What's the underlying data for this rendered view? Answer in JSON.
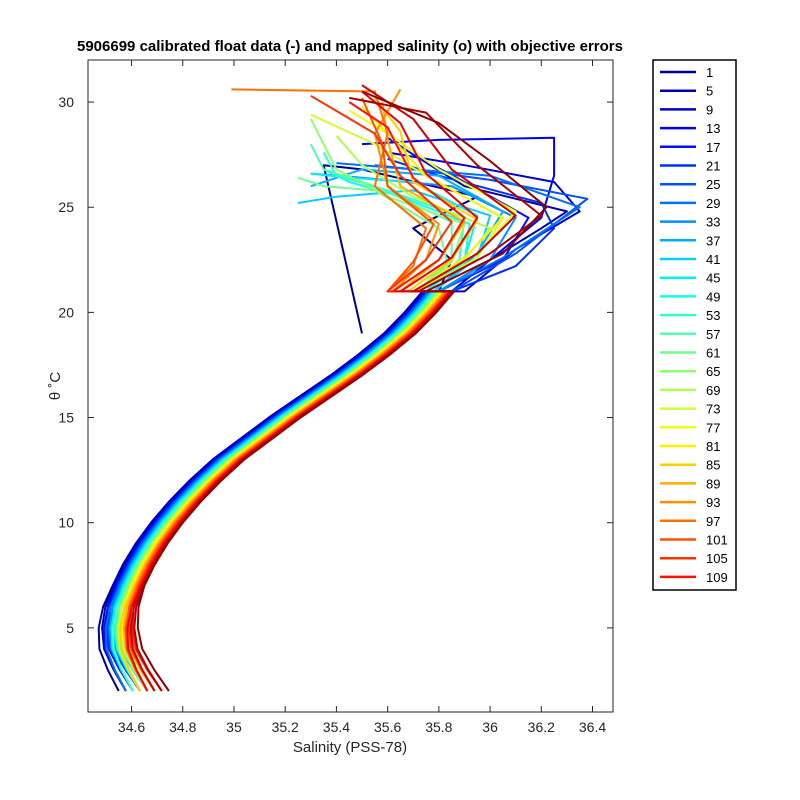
{
  "chart_data": {
    "type": "line",
    "title": "5906699 calibrated float data (-) and mapped salinity (o) with objective errors",
    "xlabel": "Salinity (PSS-78)",
    "ylabel": "θ ˚C",
    "xlim": [
      34.43,
      36.48
    ],
    "ylim": [
      1.0,
      32.0
    ],
    "x_ticks": [
      "34.6",
      "34.8",
      "35",
      "35.2",
      "35.4",
      "35.6",
      "35.8",
      "36",
      "36.2",
      "36.4"
    ],
    "y_ticks": [
      "5",
      "10",
      "15",
      "20",
      "25",
      "30"
    ],
    "x_tick_values": [
      34.6,
      34.8,
      35.0,
      35.2,
      35.4,
      35.6,
      35.8,
      36.0,
      36.2,
      36.4
    ],
    "y_tick_values": [
      5,
      10,
      15,
      20,
      25,
      30
    ],
    "grid": false,
    "legend_position": "outside-right",
    "colormap": "jet",
    "legend": [
      "1",
      "5",
      "9",
      "13",
      "17",
      "21",
      "25",
      "29",
      "33",
      "37",
      "41",
      "45",
      "49",
      "53",
      "57",
      "61",
      "65",
      "69",
      "73",
      "77",
      "81",
      "85",
      "89",
      "93",
      "97",
      "101",
      "105",
      "109"
    ],
    "mean_profile": {
      "theta": [
        2,
        3,
        4,
        5,
        6,
        7,
        8,
        9,
        10,
        11,
        12,
        13,
        14,
        15,
        16,
        17,
        18,
        19,
        20,
        21
      ],
      "salinity": [
        34.65,
        34.6,
        34.56,
        34.55,
        34.56,
        34.59,
        34.63,
        34.68,
        34.74,
        34.81,
        34.89,
        34.98,
        35.09,
        35.2,
        35.32,
        35.44,
        35.55,
        35.65,
        35.73,
        35.8
      ]
    },
    "series": [
      {
        "name": "1",
        "color": "#00008f",
        "upper": [
          [
            35.8,
            21
          ],
          [
            35.85,
            22.5
          ],
          [
            35.7,
            24
          ],
          [
            35.95,
            25.5
          ],
          [
            35.5,
            26.8
          ],
          [
            35.35,
            27.0
          ],
          [
            35.5,
            19
          ]
        ]
      },
      {
        "name": "5",
        "color": "#0000b0",
        "upper": [
          [
            35.85,
            21
          ],
          [
            36.0,
            22.5
          ],
          [
            36.2,
            24.0
          ],
          [
            36.3,
            24.8
          ],
          [
            35.9,
            26.0
          ],
          [
            35.7,
            27.5
          ]
        ]
      },
      {
        "name": "9",
        "color": "#0000cf",
        "upper": [
          [
            35.9,
            21
          ],
          [
            36.1,
            23.0
          ],
          [
            36.35,
            24.8
          ],
          [
            36.25,
            26.2
          ],
          [
            35.9,
            27.0
          ],
          [
            35.6,
            27.6
          ]
        ]
      },
      {
        "name": "13",
        "color": "#0000ef",
        "upper": [
          [
            35.8,
            21
          ],
          [
            36.0,
            22.5
          ],
          [
            36.2,
            24.5
          ],
          [
            36.25,
            26.5
          ],
          [
            36.25,
            28.3
          ],
          [
            35.8,
            28.2
          ],
          [
            35.5,
            28.0
          ]
        ]
      },
      {
        "name": "17",
        "color": "#0010ff",
        "upper": [
          [
            35.8,
            21
          ],
          [
            36.05,
            22.5
          ],
          [
            36.15,
            24.5
          ],
          [
            35.9,
            26.2
          ],
          [
            35.7,
            27.5
          ],
          [
            35.6,
            28.3
          ]
        ]
      },
      {
        "name": "21",
        "color": "#0030ff",
        "upper": [
          [
            35.85,
            21
          ],
          [
            36.1,
            22.2
          ],
          [
            36.25,
            24.0
          ],
          [
            36.2,
            25.2
          ],
          [
            35.8,
            26.5
          ],
          [
            35.6,
            27.3
          ]
        ]
      },
      {
        "name": "25",
        "color": "#0050ff",
        "upper": [
          [
            35.85,
            21
          ],
          [
            36.1,
            22.8
          ],
          [
            36.38,
            25.4
          ],
          [
            36.0,
            26.3
          ],
          [
            35.7,
            26.8
          ],
          [
            35.55,
            27.0
          ]
        ]
      },
      {
        "name": "29",
        "color": "#0070ff",
        "upper": [
          [
            35.8,
            21
          ],
          [
            36.05,
            22.6
          ],
          [
            36.35,
            25.0
          ],
          [
            36.0,
            26.5
          ],
          [
            35.6,
            26.9
          ],
          [
            35.4,
            27.1
          ]
        ]
      },
      {
        "name": "33",
        "color": "#0090ff",
        "upper": [
          [
            35.8,
            21
          ],
          [
            36.0,
            22.5
          ],
          [
            36.1,
            24.5
          ],
          [
            35.85,
            26.0
          ],
          [
            35.5,
            26.4
          ],
          [
            35.3,
            26.6
          ]
        ]
      },
      {
        "name": "37",
        "color": "#00afff",
        "upper": [
          [
            35.78,
            21
          ],
          [
            35.95,
            22.8
          ],
          [
            36.05,
            24.8
          ],
          [
            35.8,
            26.5
          ],
          [
            35.5,
            26.8
          ],
          [
            35.3,
            26.0
          ]
        ]
      },
      {
        "name": "41",
        "color": "#00cfff",
        "upper": [
          [
            35.78,
            21
          ],
          [
            35.95,
            22.6
          ],
          [
            36.0,
            24.6
          ],
          [
            35.7,
            25.8
          ],
          [
            35.4,
            25.5
          ],
          [
            35.25,
            25.2
          ]
        ]
      },
      {
        "name": "45",
        "color": "#00efff",
        "upper": [
          [
            35.75,
            21
          ],
          [
            35.9,
            22.5
          ],
          [
            35.95,
            24.6
          ],
          [
            35.7,
            26.2
          ],
          [
            35.45,
            26.4
          ],
          [
            35.3,
            26.6
          ]
        ]
      },
      {
        "name": "49",
        "color": "#10ffef",
        "upper": [
          [
            35.75,
            21
          ],
          [
            35.9,
            22.4
          ],
          [
            35.92,
            24.2
          ],
          [
            35.65,
            25.5
          ],
          [
            35.45,
            26.2
          ],
          [
            35.35,
            26.8
          ]
        ]
      },
      {
        "name": "53",
        "color": "#30ffcf",
        "upper": [
          [
            35.75,
            21
          ],
          [
            35.88,
            22.5
          ],
          [
            35.9,
            24.5
          ],
          [
            35.6,
            25.8
          ],
          [
            35.4,
            26.5
          ],
          [
            35.35,
            27.6
          ]
        ]
      },
      {
        "name": "57",
        "color": "#50ffaf",
        "upper": [
          [
            35.72,
            21
          ],
          [
            35.85,
            22.5
          ],
          [
            35.85,
            24.3
          ],
          [
            35.55,
            26.0
          ],
          [
            35.35,
            26.8
          ],
          [
            35.3,
            28.0
          ]
        ]
      },
      {
        "name": "61",
        "color": "#70ff8f",
        "upper": [
          [
            35.72,
            21
          ],
          [
            35.83,
            22.5
          ],
          [
            35.8,
            24.0
          ],
          [
            35.55,
            25.8
          ],
          [
            35.35,
            26.0
          ],
          [
            35.25,
            26.4
          ]
        ]
      },
      {
        "name": "65",
        "color": "#8fff70",
        "upper": [
          [
            35.72,
            21
          ],
          [
            35.85,
            22.4
          ],
          [
            35.9,
            24.2
          ],
          [
            35.6,
            25.5
          ],
          [
            35.4,
            26.8
          ],
          [
            35.3,
            29.2
          ]
        ]
      },
      {
        "name": "69",
        "color": "#afff50",
        "upper": [
          [
            35.72,
            21
          ],
          [
            35.9,
            22.5
          ],
          [
            36.0,
            24.0
          ],
          [
            35.7,
            25.5
          ],
          [
            35.5,
            27.0
          ],
          [
            35.4,
            28.4
          ]
        ]
      },
      {
        "name": "73",
        "color": "#cfff30",
        "upper": [
          [
            35.72,
            21
          ],
          [
            35.95,
            22.6
          ],
          [
            36.05,
            24.5
          ],
          [
            35.75,
            26.5
          ],
          [
            35.55,
            28.0
          ],
          [
            35.3,
            29.4
          ]
        ]
      },
      {
        "name": "77",
        "color": "#efff10",
        "upper": [
          [
            35.7,
            21
          ],
          [
            35.95,
            22.8
          ],
          [
            36.1,
            24.8
          ],
          [
            35.8,
            26.8
          ],
          [
            35.6,
            28.5
          ],
          [
            35.45,
            29.6
          ]
        ]
      },
      {
        "name": "81",
        "color": "#ffef00",
        "upper": [
          [
            35.7,
            21
          ],
          [
            35.9,
            22.6
          ],
          [
            36.05,
            24.5
          ],
          [
            35.75,
            26.5
          ],
          [
            35.6,
            28.5
          ],
          [
            35.5,
            29.8
          ]
        ]
      },
      {
        "name": "85",
        "color": "#ffcf00",
        "upper": [
          [
            35.68,
            21
          ],
          [
            35.85,
            22.5
          ],
          [
            35.95,
            24.4
          ],
          [
            35.7,
            26.2
          ],
          [
            35.65,
            28.6
          ],
          [
            35.55,
            30.2
          ]
        ]
      },
      {
        "name": "89",
        "color": "#ffaf00",
        "upper": [
          [
            35.65,
            21
          ],
          [
            35.8,
            22.5
          ],
          [
            35.9,
            24.3
          ],
          [
            35.65,
            26.0
          ],
          [
            35.6,
            28.2
          ],
          [
            35.58,
            30.0
          ]
        ]
      },
      {
        "name": "93",
        "color": "#ff8f00",
        "upper": [
          [
            35.62,
            21
          ],
          [
            35.75,
            22.5
          ],
          [
            35.8,
            24.2
          ],
          [
            35.6,
            26.0
          ],
          [
            35.55,
            28.5
          ],
          [
            35.65,
            30.6
          ]
        ]
      },
      {
        "name": "97",
        "color": "#ff7000",
        "upper": [
          [
            35.6,
            21
          ],
          [
            35.7,
            22.2
          ],
          [
            35.75,
            24.0
          ],
          [
            35.55,
            26.0
          ],
          [
            35.6,
            28.5
          ],
          [
            35.55,
            30.5
          ],
          [
            34.99,
            30.6
          ]
        ]
      },
      {
        "name": "101",
        "color": "#ff5000",
        "upper": [
          [
            35.6,
            21
          ],
          [
            35.7,
            22.4
          ],
          [
            35.78,
            24.2
          ],
          [
            35.6,
            26.0
          ],
          [
            35.58,
            28.0
          ],
          [
            35.5,
            30.2
          ]
        ]
      },
      {
        "name": "105",
        "color": "#ff3000",
        "upper": [
          [
            35.6,
            21
          ],
          [
            35.75,
            22.5
          ],
          [
            35.85,
            24.3
          ],
          [
            35.65,
            26.5
          ],
          [
            35.55,
            28.5
          ],
          [
            35.3,
            30.3
          ]
        ]
      },
      {
        "name": "109",
        "color": "#ff1000",
        "upper": [
          [
            35.62,
            21
          ],
          [
            35.8,
            22.5
          ],
          [
            35.9,
            24.5
          ],
          [
            35.7,
            26.4
          ],
          [
            35.6,
            28.8
          ],
          [
            35.45,
            30.0
          ]
        ]
      },
      {
        "name": "",
        "color": "#ef0000",
        "upper": [
          [
            35.65,
            21
          ],
          [
            35.85,
            22.6
          ],
          [
            35.95,
            24.5
          ],
          [
            35.75,
            26.6
          ],
          [
            35.65,
            29.0
          ],
          [
            35.5,
            30.5
          ]
        ]
      },
      {
        "name": "",
        "color": "#cf0000",
        "upper": [
          [
            35.7,
            21
          ],
          [
            35.95,
            22.8
          ],
          [
            36.1,
            24.6
          ],
          [
            35.85,
            26.8
          ],
          [
            35.7,
            29.2
          ],
          [
            35.5,
            30.8
          ]
        ]
      },
      {
        "name": "",
        "color": "#af0000",
        "upper": [
          [
            35.72,
            21
          ],
          [
            36.0,
            22.8
          ],
          [
            36.2,
            24.6
          ],
          [
            35.95,
            27.0
          ],
          [
            35.75,
            29.5
          ],
          [
            35.45,
            30.2
          ]
        ]
      },
      {
        "name": "",
        "color": "#8f0000",
        "upper": [
          [
            35.75,
            21
          ],
          [
            36.05,
            22.8
          ],
          [
            36.22,
            25.0
          ],
          [
            36.0,
            27.2
          ],
          [
            35.8,
            29.0
          ],
          [
            35.5,
            30.5
          ]
        ]
      }
    ]
  }
}
